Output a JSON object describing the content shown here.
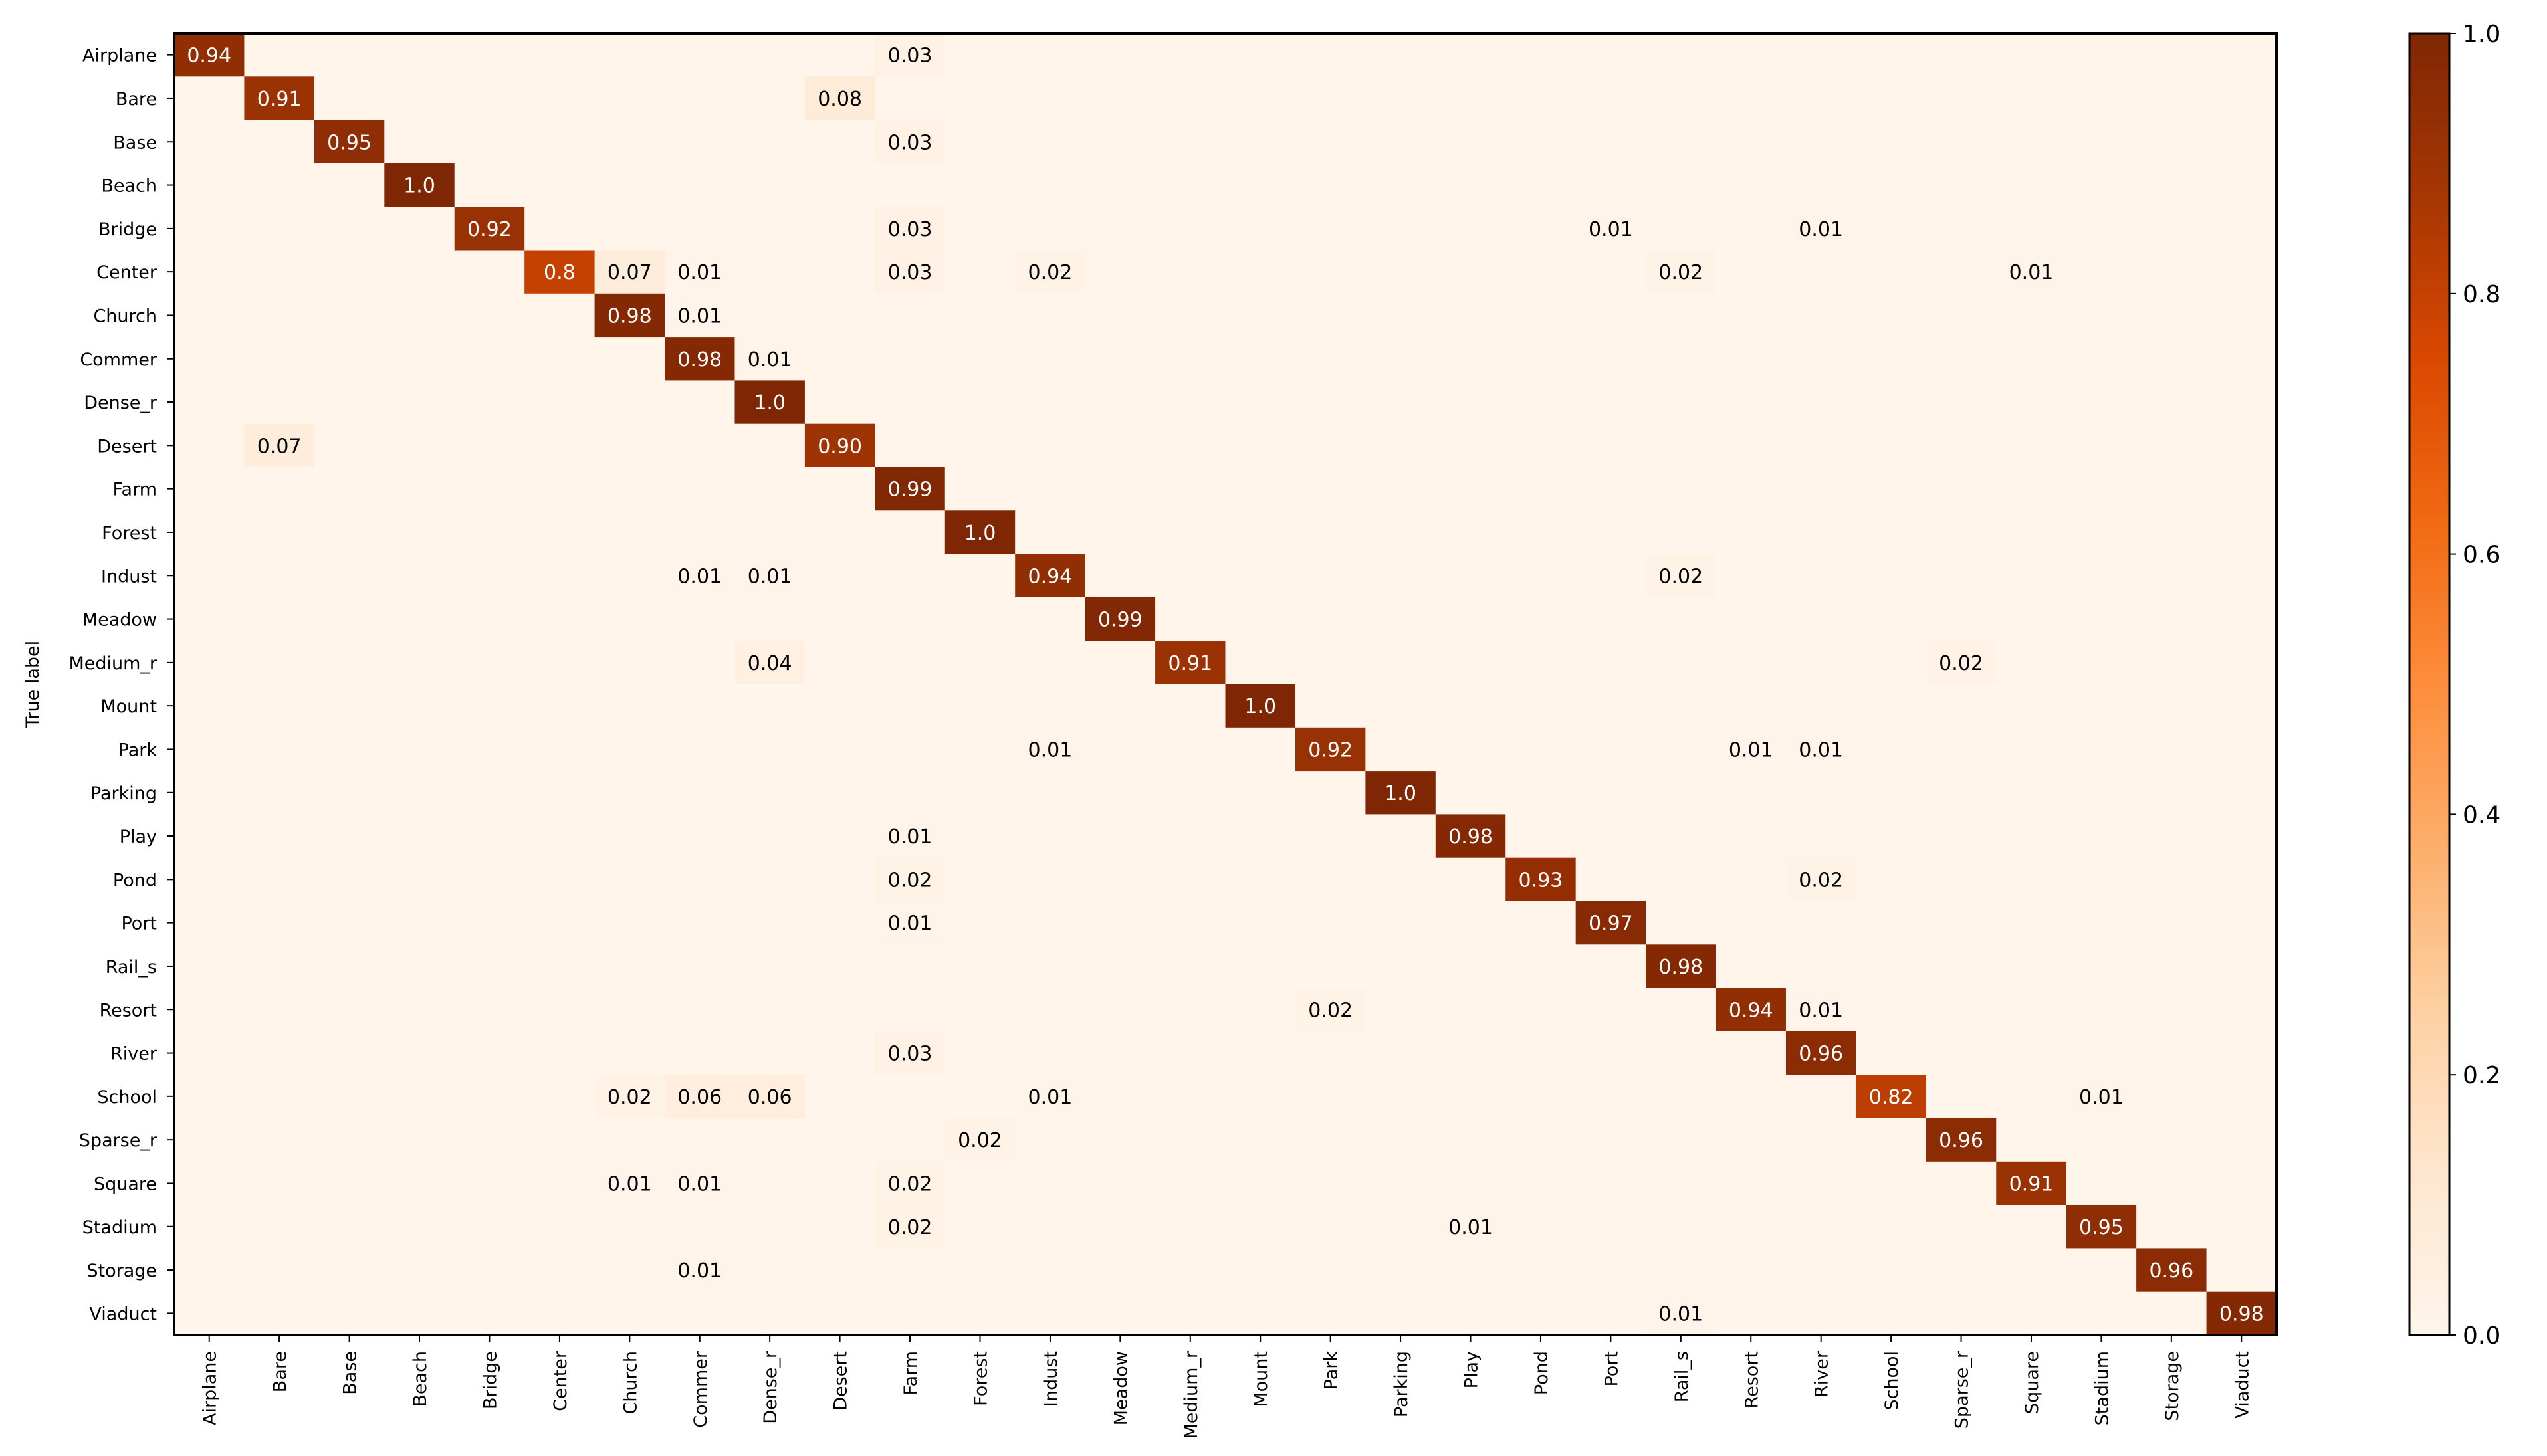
{
  "chart_data": {
    "type": "heatmap",
    "title": "",
    "xlabel": "",
    "ylabel": "True label",
    "colormap": "Oranges",
    "vmin": 0.0,
    "vmax": 1.0,
    "colorbar_ticks": [
      "0.0",
      "0.2",
      "0.4",
      "0.6",
      "0.8",
      "1.0"
    ],
    "row_labels": [
      "Airplane",
      "Bare",
      "Base",
      "Beach",
      "Bridge",
      "Center",
      "Church",
      "Commer",
      "Dense_r",
      "Desert",
      "Farm",
      "Forest",
      "Indust",
      "Meadow",
      "Medium_r",
      "Mount",
      "Park",
      "Parking",
      "Play",
      "Pond",
      "Port",
      "Rail_s",
      "Resort",
      "River",
      "School",
      "Sparse_r",
      "Square",
      "Stadium",
      "Storage",
      "Viaduct"
    ],
    "col_labels": [
      "Airplane",
      "Bare",
      "Base",
      "Beach",
      "Bridge",
      "Center",
      "Church",
      "Commer",
      "Dense_r",
      "Desert",
      "Farm",
      "Forest",
      "Indust",
      "Meadow",
      "Medium_r",
      "Mount",
      "Park",
      "Parking",
      "Play",
      "Pond",
      "Port",
      "Rail_s",
      "Resort",
      "River",
      "School",
      "Sparse_r",
      "Square",
      "Stadium",
      "Storage",
      "Viaduct"
    ],
    "annotations": [
      {
        "row": 0,
        "col": 0,
        "value": 0.94,
        "text": "0.94"
      },
      {
        "row": 0,
        "col": 10,
        "value": 0.03,
        "text": "0.03"
      },
      {
        "row": 1,
        "col": 1,
        "value": 0.91,
        "text": "0.91"
      },
      {
        "row": 1,
        "col": 9,
        "value": 0.08,
        "text": "0.08"
      },
      {
        "row": 2,
        "col": 2,
        "value": 0.95,
        "text": "0.95"
      },
      {
        "row": 2,
        "col": 10,
        "value": 0.03,
        "text": "0.03"
      },
      {
        "row": 3,
        "col": 3,
        "value": 1.0,
        "text": "1.0"
      },
      {
        "row": 4,
        "col": 4,
        "value": 0.92,
        "text": "0.92"
      },
      {
        "row": 4,
        "col": 10,
        "value": 0.03,
        "text": "0.03"
      },
      {
        "row": 4,
        "col": 20,
        "value": 0.01,
        "text": "0.01"
      },
      {
        "row": 4,
        "col": 23,
        "value": 0.01,
        "text": "0.01"
      },
      {
        "row": 5,
        "col": 5,
        "value": 0.8,
        "text": "0.8"
      },
      {
        "row": 5,
        "col": 6,
        "value": 0.07,
        "text": "0.07"
      },
      {
        "row": 5,
        "col": 7,
        "value": 0.01,
        "text": "0.01"
      },
      {
        "row": 5,
        "col": 10,
        "value": 0.03,
        "text": "0.03"
      },
      {
        "row": 5,
        "col": 12,
        "value": 0.02,
        "text": "0.02"
      },
      {
        "row": 5,
        "col": 21,
        "value": 0.02,
        "text": "0.02"
      },
      {
        "row": 5,
        "col": 26,
        "value": 0.01,
        "text": "0.01"
      },
      {
        "row": 6,
        "col": 6,
        "value": 0.98,
        "text": "0.98"
      },
      {
        "row": 6,
        "col": 7,
        "value": 0.01,
        "text": "0.01"
      },
      {
        "row": 7,
        "col": 7,
        "value": 0.98,
        "text": "0.98"
      },
      {
        "row": 7,
        "col": 8,
        "value": 0.01,
        "text": "0.01"
      },
      {
        "row": 8,
        "col": 8,
        "value": 1.0,
        "text": "1.0"
      },
      {
        "row": 9,
        "col": 1,
        "value": 0.07,
        "text": "0.07"
      },
      {
        "row": 9,
        "col": 9,
        "value": 0.9,
        "text": "0.90"
      },
      {
        "row": 10,
        "col": 10,
        "value": 0.99,
        "text": "0.99"
      },
      {
        "row": 11,
        "col": 11,
        "value": 1.0,
        "text": "1.0"
      },
      {
        "row": 12,
        "col": 7,
        "value": 0.01,
        "text": "0.01"
      },
      {
        "row": 12,
        "col": 8,
        "value": 0.01,
        "text": "0.01"
      },
      {
        "row": 12,
        "col": 12,
        "value": 0.94,
        "text": "0.94"
      },
      {
        "row": 12,
        "col": 21,
        "value": 0.02,
        "text": "0.02"
      },
      {
        "row": 13,
        "col": 13,
        "value": 0.99,
        "text": "0.99"
      },
      {
        "row": 14,
        "col": 8,
        "value": 0.04,
        "text": "0.04"
      },
      {
        "row": 14,
        "col": 14,
        "value": 0.91,
        "text": "0.91"
      },
      {
        "row": 14,
        "col": 25,
        "value": 0.02,
        "text": "0.02"
      },
      {
        "row": 15,
        "col": 15,
        "value": 1.0,
        "text": "1.0"
      },
      {
        "row": 16,
        "col": 12,
        "value": 0.01,
        "text": "0.01"
      },
      {
        "row": 16,
        "col": 16,
        "value": 0.92,
        "text": "0.92"
      },
      {
        "row": 16,
        "col": 22,
        "value": 0.01,
        "text": "0.01"
      },
      {
        "row": 16,
        "col": 23,
        "value": 0.01,
        "text": "0.01"
      },
      {
        "row": 17,
        "col": 17,
        "value": 1.0,
        "text": "1.0"
      },
      {
        "row": 18,
        "col": 10,
        "value": 0.01,
        "text": "0.01"
      },
      {
        "row": 18,
        "col": 18,
        "value": 0.98,
        "text": "0.98"
      },
      {
        "row": 19,
        "col": 10,
        "value": 0.02,
        "text": "0.02"
      },
      {
        "row": 19,
        "col": 19,
        "value": 0.93,
        "text": "0.93"
      },
      {
        "row": 19,
        "col": 23,
        "value": 0.02,
        "text": "0.02"
      },
      {
        "row": 20,
        "col": 10,
        "value": 0.01,
        "text": "0.01"
      },
      {
        "row": 20,
        "col": 20,
        "value": 0.97,
        "text": "0.97"
      },
      {
        "row": 21,
        "col": 21,
        "value": 0.98,
        "text": "0.98"
      },
      {
        "row": 22,
        "col": 16,
        "value": 0.02,
        "text": "0.02"
      },
      {
        "row": 22,
        "col": 22,
        "value": 0.94,
        "text": "0.94"
      },
      {
        "row": 22,
        "col": 23,
        "value": 0.01,
        "text": "0.01"
      },
      {
        "row": 23,
        "col": 10,
        "value": 0.03,
        "text": "0.03"
      },
      {
        "row": 23,
        "col": 23,
        "value": 0.96,
        "text": "0.96"
      },
      {
        "row": 24,
        "col": 6,
        "value": 0.02,
        "text": "0.02"
      },
      {
        "row": 24,
        "col": 7,
        "value": 0.06,
        "text": "0.06"
      },
      {
        "row": 24,
        "col": 8,
        "value": 0.06,
        "text": "0.06"
      },
      {
        "row": 24,
        "col": 12,
        "value": 0.01,
        "text": "0.01"
      },
      {
        "row": 24,
        "col": 24,
        "value": 0.82,
        "text": "0.82"
      },
      {
        "row": 24,
        "col": 27,
        "value": 0.01,
        "text": "0.01"
      },
      {
        "row": 25,
        "col": 11,
        "value": 0.02,
        "text": "0.02"
      },
      {
        "row": 25,
        "col": 25,
        "value": 0.96,
        "text": "0.96"
      },
      {
        "row": 26,
        "col": 6,
        "value": 0.01,
        "text": "0.01"
      },
      {
        "row": 26,
        "col": 7,
        "value": 0.01,
        "text": "0.01"
      },
      {
        "row": 26,
        "col": 10,
        "value": 0.02,
        "text": "0.02"
      },
      {
        "row": 26,
        "col": 26,
        "value": 0.91,
        "text": "0.91"
      },
      {
        "row": 27,
        "col": 10,
        "value": 0.02,
        "text": "0.02"
      },
      {
        "row": 27,
        "col": 18,
        "value": 0.01,
        "text": "0.01"
      },
      {
        "row": 27,
        "col": 27,
        "value": 0.95,
        "text": "0.95"
      },
      {
        "row": 28,
        "col": 7,
        "value": 0.01,
        "text": "0.01"
      },
      {
        "row": 28,
        "col": 28,
        "value": 0.96,
        "text": "0.96"
      },
      {
        "row": 29,
        "col": 21,
        "value": 0.01,
        "text": "0.01"
      },
      {
        "row": 29,
        "col": 29,
        "value": 0.98,
        "text": "0.98"
      }
    ]
  }
}
